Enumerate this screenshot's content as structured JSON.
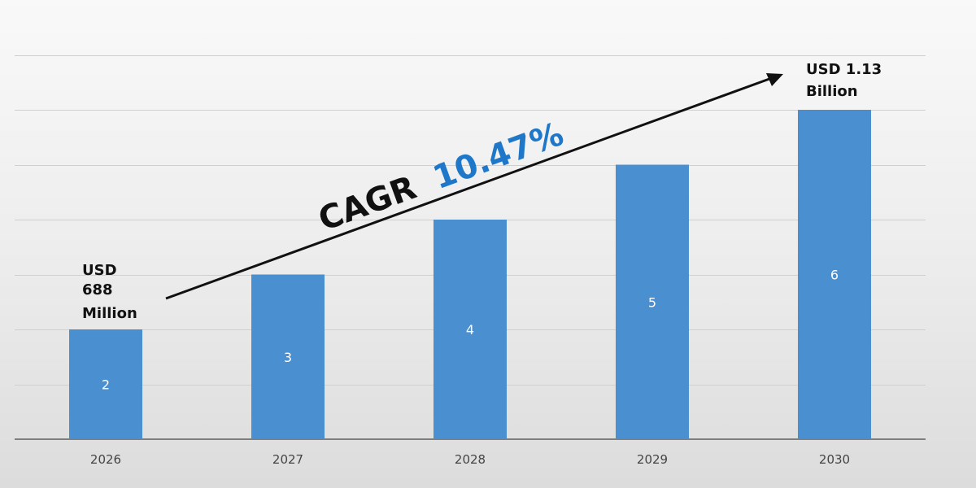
{
  "chart_data": {
    "type": "bar",
    "categories": [
      "2026",
      "2027",
      "2028",
      "2029",
      "2030"
    ],
    "values": [
      2,
      3,
      4,
      5,
      6
    ],
    "data_labels": [
      "2",
      "3",
      "4",
      "5",
      "6"
    ],
    "ylim": [
      0,
      8
    ],
    "grid": true,
    "bar_color": "#4a8fd0",
    "annotations": {
      "start_label": [
        "USD",
        "688",
        "Million"
      ],
      "end_label": [
        "USD 1.13",
        "Billion"
      ],
      "cagr_prefix": "CAGR ",
      "cagr_value": "10.47%"
    }
  },
  "colors": {
    "bar": "#4a8fd0",
    "cagr_value": "#1f77c9",
    "text": "#111111"
  }
}
